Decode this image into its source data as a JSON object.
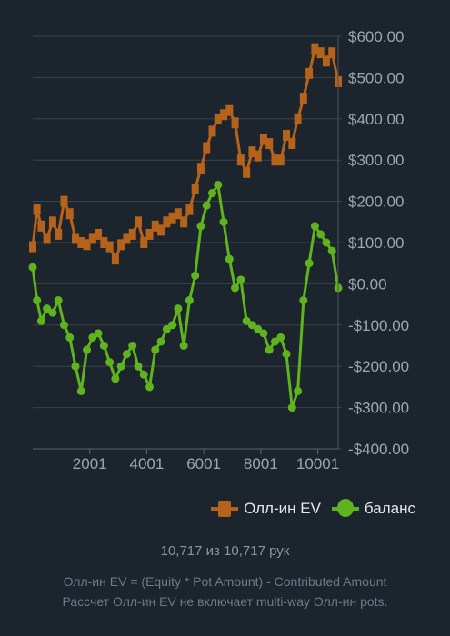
{
  "legend": {
    "ev_label": "Олл-ин EV",
    "balance_label": "баланс"
  },
  "footer": {
    "hands_text": "10,717 из 10,717 рук",
    "formula_text": "Олл-ин EV = (Equity * Pot Amount) - Contributed Amount",
    "note_text": "Рассчет Олл-ин EV не включает multi-way Олл-ин pots."
  },
  "colors": {
    "ev": "#b5621a",
    "balance": "#5fb41e",
    "grid": "#3a434d",
    "background": "#1c242d"
  },
  "chart_data": {
    "type": "line",
    "title": "",
    "xlabel": "",
    "ylabel": "",
    "xlim": [
      1,
      10717
    ],
    "ylim": [
      -400,
      600
    ],
    "x_ticks": [
      2001,
      4001,
      6001,
      8001,
      10001
    ],
    "x_tick_labels": [
      "2001",
      "4001",
      "6001",
      "8001",
      "10001"
    ],
    "y_ticks": [
      600,
      500,
      400,
      300,
      200,
      100,
      0,
      -100,
      -200,
      -300,
      -400
    ],
    "y_tick_labels": [
      "$600.00",
      "$500.00",
      "$400.00",
      "$300.00",
      "$200.00",
      "$100.00",
      "$0.00",
      "-$100.00",
      "-$200.00",
      "-$300.00",
      "-$400.00"
    ],
    "y_axis_position": "right",
    "grid": "horizontal",
    "legend_position": "bottom-right",
    "series": [
      {
        "name": "Олл-ин EV",
        "marker": "square",
        "x": [
          1,
          150,
          300,
          500,
          700,
          900,
          1100,
          1300,
          1500,
          1700,
          1900,
          2100,
          2300,
          2500,
          2700,
          2900,
          3100,
          3300,
          3500,
          3700,
          3900,
          4100,
          4300,
          4500,
          4700,
          4900,
          5100,
          5300,
          5500,
          5700,
          5900,
          6100,
          6300,
          6500,
          6700,
          6900,
          7100,
          7300,
          7500,
          7700,
          7900,
          8100,
          8300,
          8500,
          8700,
          8900,
          9100,
          9300,
          9500,
          9700,
          9900,
          10100,
          10300,
          10500,
          10717
        ],
        "values": [
          90,
          180,
          140,
          110,
          150,
          120,
          200,
          170,
          110,
          100,
          95,
          110,
          120,
          100,
          90,
          60,
          95,
          110,
          120,
          150,
          100,
          120,
          140,
          130,
          150,
          160,
          170,
          150,
          180,
          230,
          280,
          330,
          370,
          400,
          410,
          420,
          390,
          300,
          270,
          320,
          310,
          350,
          340,
          300,
          300,
          360,
          340,
          400,
          450,
          510,
          570,
          560,
          540,
          560,
          490
        ]
      },
      {
        "name": "баланс",
        "marker": "circle",
        "x": [
          1,
          150,
          300,
          500,
          700,
          900,
          1100,
          1300,
          1500,
          1700,
          1900,
          2100,
          2300,
          2500,
          2700,
          2900,
          3100,
          3300,
          3500,
          3700,
          3900,
          4100,
          4300,
          4500,
          4700,
          4900,
          5100,
          5300,
          5500,
          5700,
          5900,
          6100,
          6300,
          6500,
          6700,
          6900,
          7100,
          7300,
          7500,
          7700,
          7900,
          8100,
          8300,
          8500,
          8700,
          8900,
          9100,
          9300,
          9500,
          9700,
          9900,
          10100,
          10300,
          10500,
          10717
        ],
        "values": [
          40,
          -40,
          -90,
          -60,
          -70,
          -40,
          -100,
          -130,
          -200,
          -260,
          -160,
          -130,
          -120,
          -150,
          -190,
          -230,
          -200,
          -170,
          -150,
          -200,
          -220,
          -250,
          -160,
          -140,
          -110,
          -100,
          -60,
          -150,
          -40,
          20,
          140,
          190,
          220,
          240,
          150,
          60,
          -10,
          10,
          -90,
          -100,
          -110,
          -120,
          -160,
          -140,
          -130,
          -170,
          -300,
          -260,
          -40,
          50,
          140,
          120,
          100,
          80,
          -10
        ]
      }
    ]
  }
}
